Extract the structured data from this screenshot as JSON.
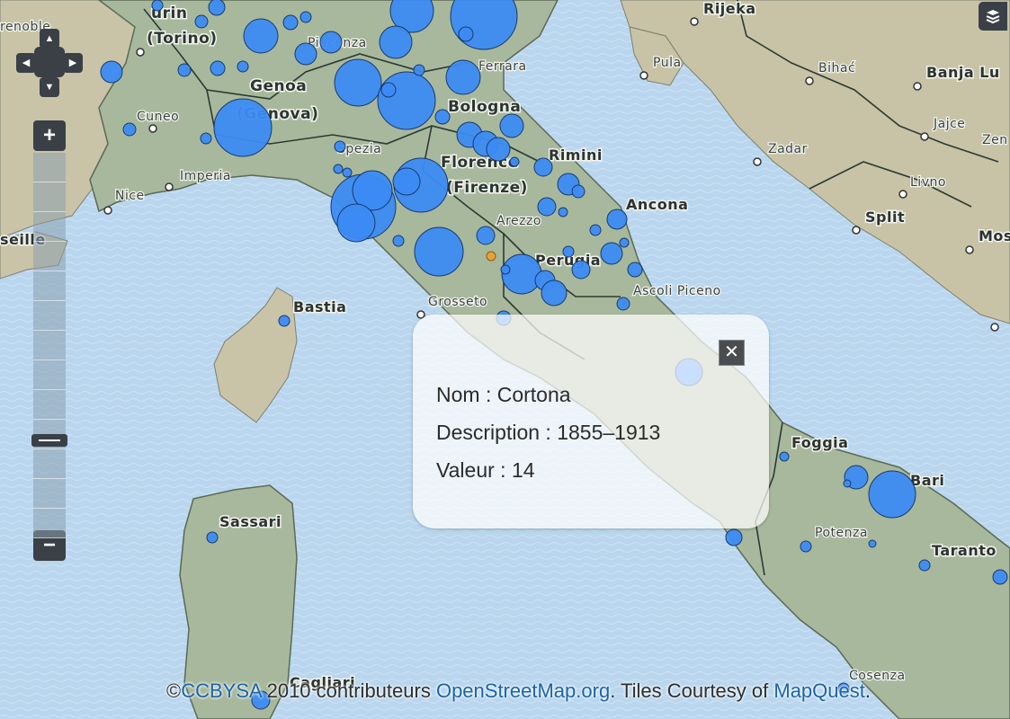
{
  "map": {
    "labels": {
      "torino_city": "urin",
      "torino_alt": "(Torino)",
      "grenoble": "renoble",
      "genoa": "Genoa",
      "genova": "(Genova)",
      "cuneo": "Cuneo",
      "imperia": "Imperia",
      "nice": "Nice",
      "seille": "seille",
      "spezia": "Spezia",
      "piacenza": "Piacenza",
      "ferrara": "Ferrara",
      "bologna": "Bologna",
      "rimini": "Rimini",
      "florence": "Florence",
      "firenze": "(Firenze)",
      "arezzo": "Arezzo",
      "ancona": "Ancona",
      "perugia": "Perugia",
      "ascoli": "Ascoli Piceno",
      "grosseto": "Grosseto",
      "bastia": "Bastia",
      "sassari": "Sassari",
      "cagliari": "Cagliari",
      "rijeka": "Rijeka",
      "pula": "Pula",
      "bihac": "Bihać",
      "banja": "Banja Lu",
      "jajce": "Jajce",
      "zen": "Zen",
      "zadar": "Zadar",
      "livno": "Livno",
      "split": "Split",
      "mos": "Mos",
      "foggia": "Foggia",
      "bari": "Bari",
      "potenza": "Potenza",
      "taranto": "Taranto",
      "cosenza": "Cosenza"
    }
  },
  "popup": {
    "nom_label": "Nom : Cortona",
    "description_label": "Description : 1855–1913",
    "valeur_label": "Valeur : 14",
    "close_icon": "close-icon"
  },
  "controls": {
    "zoom_in": "+",
    "zoom_out": "−",
    "pan_up": "▲",
    "pan_down": "▼",
    "pan_left": "◀",
    "pan_right": "▶"
  },
  "attribution": {
    "prefix": "©",
    "license": "CCBYSA",
    "middle": " 2010 contributeurs ",
    "osm": "OpenStreetMap.org",
    "tiles": ". Tiles Courtesy of ",
    "mapquest": "MapQuest",
    "end": "."
  },
  "colors": {
    "marker": "#3c8bf3",
    "sea": "#b9d6ee",
    "land": "#a8b89c"
  }
}
